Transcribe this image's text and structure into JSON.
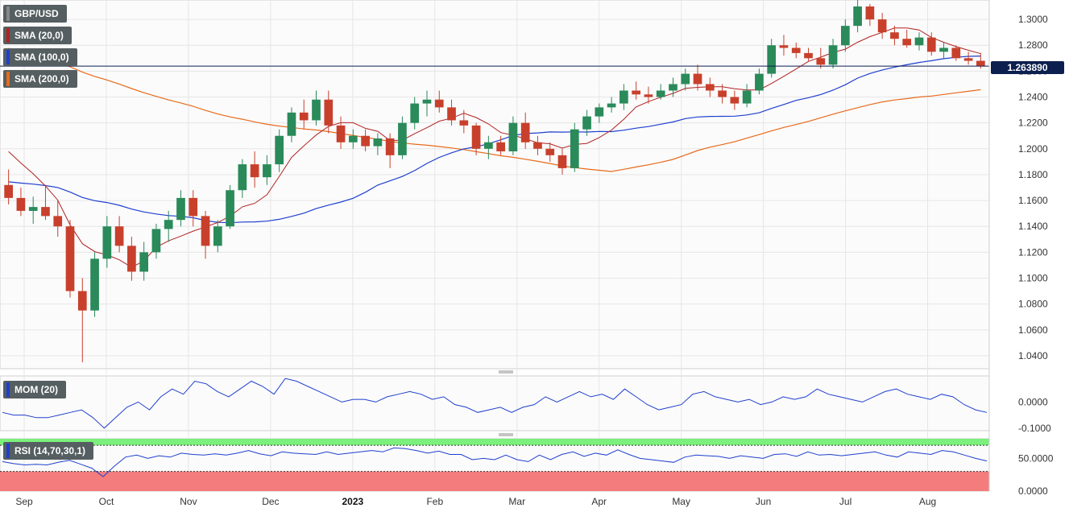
{
  "chart_data": {
    "type": "candlestick",
    "symbol": "GBP/USD",
    "x_labels": [
      "Sep",
      "Oct",
      "Nov",
      "Dec",
      "2023",
      "Feb",
      "Mar",
      "Apr",
      "May",
      "Jun",
      "Jul",
      "Aug"
    ],
    "main": {
      "y_ticks": [
        "1.3000",
        "1.2800",
        "1.2600",
        "1.2400",
        "1.2200",
        "1.2000",
        "1.1800",
        "1.1600",
        "1.1400",
        "1.1200",
        "1.1000",
        "1.0800",
        "1.0600",
        "1.0400"
      ],
      "ylim": [
        1.03,
        1.315
      ],
      "last_price": "1.263890",
      "last_price_value": 1.26389,
      "series": [
        {
          "name": "SMA (20,0)",
          "color": "#b22222"
        },
        {
          "name": "SMA (100,0)",
          "color": "#1f3fcf"
        },
        {
          "name": "SMA (200,0)",
          "color": "#e86a1a"
        }
      ]
    },
    "momentum": {
      "name": "MOM (20)",
      "color": "#1f3fcf",
      "y_ticks": [
        "0.0000",
        "-0.1000"
      ],
      "ylim": [
        -0.11,
        0.1
      ],
      "values": [
        -0.04,
        -0.05,
        -0.05,
        -0.06,
        -0.06,
        -0.05,
        -0.04,
        -0.03,
        -0.06,
        -0.1,
        -0.06,
        -0.02,
        0.0,
        -0.03,
        0.02,
        0.05,
        0.03,
        0.08,
        0.07,
        0.04,
        0.02,
        0.05,
        0.08,
        0.06,
        0.03,
        0.09,
        0.08,
        0.06,
        0.04,
        0.02,
        0.0,
        0.01,
        0.01,
        0.0,
        0.02,
        0.03,
        0.04,
        0.03,
        0.01,
        0.02,
        -0.01,
        -0.02,
        -0.04,
        -0.03,
        -0.02,
        -0.04,
        -0.02,
        -0.01,
        0.02,
        0.0,
        0.02,
        0.04,
        0.02,
        0.03,
        0.01,
        0.05,
        0.02,
        -0.01,
        -0.03,
        -0.02,
        -0.01,
        0.03,
        0.04,
        0.02,
        0.01,
        0.0,
        0.01,
        -0.01,
        0.0,
        0.02,
        0.01,
        0.02,
        0.05,
        0.03,
        0.02,
        0.01,
        0.0,
        0.02,
        0.04,
        0.05,
        0.03,
        0.02,
        0.01,
        0.03,
        0.02,
        -0.01,
        -0.03,
        -0.04
      ],
      "zero_line": false
    },
    "rsi": {
      "name": "RSI (14,70,30,1)",
      "color": "#1f3fcf",
      "overbought": 70,
      "oversold": 30,
      "y_ticks": [
        "50.0000",
        "0.0000"
      ],
      "ylim": [
        0,
        80
      ],
      "values": [
        45,
        42,
        40,
        41,
        40,
        44,
        47,
        41,
        35,
        22,
        38,
        52,
        55,
        50,
        54,
        52,
        58,
        56,
        55,
        57,
        55,
        58,
        62,
        57,
        54,
        60,
        58,
        57,
        56,
        60,
        56,
        58,
        60,
        62,
        60,
        66,
        65,
        62,
        58,
        61,
        56,
        56,
        48,
        50,
        48,
        55,
        48,
        45,
        55,
        48,
        56,
        60,
        53,
        58,
        55,
        63,
        56,
        50,
        48,
        46,
        44,
        52,
        55,
        54,
        53,
        50,
        54,
        52,
        50,
        56,
        57,
        53,
        60,
        55,
        56,
        54,
        56,
        58,
        60,
        55,
        52,
        60,
        58,
        56,
        62,
        60,
        55,
        50,
        46
      ]
    },
    "candles": [
      {
        "o": 1.172,
        "h": 1.184,
        "l": 1.157,
        "c": 1.162
      },
      {
        "o": 1.162,
        "h": 1.17,
        "l": 1.148,
        "c": 1.152
      },
      {
        "o": 1.152,
        "h": 1.163,
        "l": 1.142,
        "c": 1.155
      },
      {
        "o": 1.155,
        "h": 1.172,
        "l": 1.145,
        "c": 1.148
      },
      {
        "o": 1.148,
        "h": 1.16,
        "l": 1.132,
        "c": 1.14
      },
      {
        "o": 1.14,
        "h": 1.145,
        "l": 1.085,
        "c": 1.09
      },
      {
        "o": 1.09,
        "h": 1.1,
        "l": 1.035,
        "c": 1.075
      },
      {
        "o": 1.075,
        "h": 1.12,
        "l": 1.07,
        "c": 1.115
      },
      {
        "o": 1.115,
        "h": 1.148,
        "l": 1.108,
        "c": 1.14
      },
      {
        "o": 1.14,
        "h": 1.148,
        "l": 1.12,
        "c": 1.125
      },
      {
        "o": 1.125,
        "h": 1.132,
        "l": 1.098,
        "c": 1.105
      },
      {
        "o": 1.105,
        "h": 1.128,
        "l": 1.098,
        "c": 1.12
      },
      {
        "o": 1.12,
        "h": 1.142,
        "l": 1.115,
        "c": 1.138
      },
      {
        "o": 1.138,
        "h": 1.152,
        "l": 1.128,
        "c": 1.145
      },
      {
        "o": 1.145,
        "h": 1.168,
        "l": 1.14,
        "c": 1.162
      },
      {
        "o": 1.162,
        "h": 1.168,
        "l": 1.14,
        "c": 1.148
      },
      {
        "o": 1.148,
        "h": 1.152,
        "l": 1.115,
        "c": 1.125
      },
      {
        "o": 1.125,
        "h": 1.145,
        "l": 1.12,
        "c": 1.14
      },
      {
        "o": 1.14,
        "h": 1.172,
        "l": 1.138,
        "c": 1.168
      },
      {
        "o": 1.168,
        "h": 1.192,
        "l": 1.162,
        "c": 1.188
      },
      {
        "o": 1.188,
        "h": 1.198,
        "l": 1.17,
        "c": 1.178
      },
      {
        "o": 1.178,
        "h": 1.195,
        "l": 1.172,
        "c": 1.188
      },
      {
        "o": 1.188,
        "h": 1.215,
        "l": 1.182,
        "c": 1.21
      },
      {
        "o": 1.21,
        "h": 1.232,
        "l": 1.205,
        "c": 1.228
      },
      {
        "o": 1.228,
        "h": 1.238,
        "l": 1.215,
        "c": 1.222
      },
      {
        "o": 1.222,
        "h": 1.245,
        "l": 1.218,
        "c": 1.238
      },
      {
        "o": 1.238,
        "h": 1.245,
        "l": 1.212,
        "c": 1.218
      },
      {
        "o": 1.218,
        "h": 1.225,
        "l": 1.2,
        "c": 1.205
      },
      {
        "o": 1.205,
        "h": 1.215,
        "l": 1.2,
        "c": 1.21
      },
      {
        "o": 1.21,
        "h": 1.215,
        "l": 1.198,
        "c": 1.202
      },
      {
        "o": 1.202,
        "h": 1.212,
        "l": 1.195,
        "c": 1.208
      },
      {
        "o": 1.208,
        "h": 1.212,
        "l": 1.185,
        "c": 1.195
      },
      {
        "o": 1.195,
        "h": 1.225,
        "l": 1.192,
        "c": 1.22
      },
      {
        "o": 1.22,
        "h": 1.24,
        "l": 1.215,
        "c": 1.235
      },
      {
        "o": 1.235,
        "h": 1.245,
        "l": 1.225,
        "c": 1.238
      },
      {
        "o": 1.238,
        "h": 1.245,
        "l": 1.228,
        "c": 1.232
      },
      {
        "o": 1.232,
        "h": 1.238,
        "l": 1.218,
        "c": 1.222
      },
      {
        "o": 1.222,
        "h": 1.23,
        "l": 1.212,
        "c": 1.218
      },
      {
        "o": 1.218,
        "h": 1.22,
        "l": 1.195,
        "c": 1.2
      },
      {
        "o": 1.2,
        "h": 1.21,
        "l": 1.192,
        "c": 1.205
      },
      {
        "o": 1.205,
        "h": 1.21,
        "l": 1.195,
        "c": 1.198
      },
      {
        "o": 1.198,
        "h": 1.225,
        "l": 1.195,
        "c": 1.22
      },
      {
        "o": 1.22,
        "h": 1.228,
        "l": 1.2,
        "c": 1.205
      },
      {
        "o": 1.205,
        "h": 1.21,
        "l": 1.195,
        "c": 1.2
      },
      {
        "o": 1.2,
        "h": 1.205,
        "l": 1.19,
        "c": 1.195
      },
      {
        "o": 1.195,
        "h": 1.2,
        "l": 1.18,
        "c": 1.185
      },
      {
        "o": 1.185,
        "h": 1.22,
        "l": 1.182,
        "c": 1.215
      },
      {
        "o": 1.215,
        "h": 1.23,
        "l": 1.21,
        "c": 1.225
      },
      {
        "o": 1.225,
        "h": 1.235,
        "l": 1.22,
        "c": 1.232
      },
      {
        "o": 1.232,
        "h": 1.24,
        "l": 1.228,
        "c": 1.235
      },
      {
        "o": 1.235,
        "h": 1.25,
        "l": 1.23,
        "c": 1.245
      },
      {
        "o": 1.245,
        "h": 1.252,
        "l": 1.238,
        "c": 1.242
      },
      {
        "o": 1.242,
        "h": 1.248,
        "l": 1.235,
        "c": 1.24
      },
      {
        "o": 1.24,
        "h": 1.25,
        "l": 1.238,
        "c": 1.245
      },
      {
        "o": 1.245,
        "h": 1.255,
        "l": 1.24,
        "c": 1.25
      },
      {
        "o": 1.25,
        "h": 1.262,
        "l": 1.245,
        "c": 1.258
      },
      {
        "o": 1.258,
        "h": 1.265,
        "l": 1.245,
        "c": 1.25
      },
      {
        "o": 1.25,
        "h": 1.255,
        "l": 1.24,
        "c": 1.245
      },
      {
        "o": 1.245,
        "h": 1.25,
        "l": 1.235,
        "c": 1.24
      },
      {
        "o": 1.24,
        "h": 1.245,
        "l": 1.23,
        "c": 1.235
      },
      {
        "o": 1.235,
        "h": 1.25,
        "l": 1.232,
        "c": 1.245
      },
      {
        "o": 1.245,
        "h": 1.262,
        "l": 1.242,
        "c": 1.258
      },
      {
        "o": 1.258,
        "h": 1.285,
        "l": 1.255,
        "c": 1.28
      },
      {
        "o": 1.28,
        "h": 1.288,
        "l": 1.272,
        "c": 1.278
      },
      {
        "o": 1.278,
        "h": 1.282,
        "l": 1.27,
        "c": 1.274
      },
      {
        "o": 1.274,
        "h": 1.278,
        "l": 1.268,
        "c": 1.27
      },
      {
        "o": 1.27,
        "h": 1.278,
        "l": 1.262,
        "c": 1.265
      },
      {
        "o": 1.265,
        "h": 1.285,
        "l": 1.262,
        "c": 1.28
      },
      {
        "o": 1.28,
        "h": 1.3,
        "l": 1.275,
        "c": 1.295
      },
      {
        "o": 1.295,
        "h": 1.315,
        "l": 1.29,
        "c": 1.31
      },
      {
        "o": 1.31,
        "h": 1.312,
        "l": 1.295,
        "c": 1.3
      },
      {
        "o": 1.3,
        "h": 1.305,
        "l": 1.285,
        "c": 1.29
      },
      {
        "o": 1.29,
        "h": 1.295,
        "l": 1.28,
        "c": 1.285
      },
      {
        "o": 1.285,
        "h": 1.292,
        "l": 1.278,
        "c": 1.28
      },
      {
        "o": 1.28,
        "h": 1.29,
        "l": 1.276,
        "c": 1.286
      },
      {
        "o": 1.286,
        "h": 1.29,
        "l": 1.272,
        "c": 1.275
      },
      {
        "o": 1.275,
        "h": 1.282,
        "l": 1.27,
        "c": 1.278
      },
      {
        "o": 1.278,
        "h": 1.28,
        "l": 1.268,
        "c": 1.27
      },
      {
        "o": 1.27,
        "h": 1.275,
        "l": 1.265,
        "c": 1.268
      },
      {
        "o": 1.268,
        "h": 1.274,
        "l": 1.262,
        "c": 1.264
      }
    ]
  }
}
